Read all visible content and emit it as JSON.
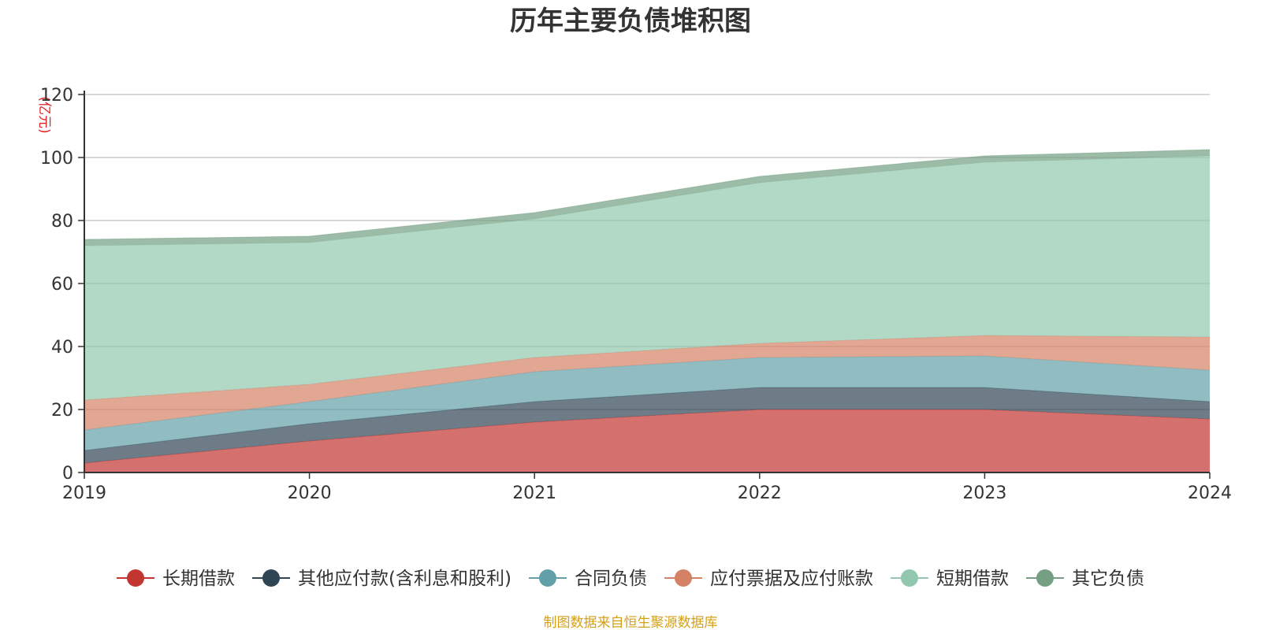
{
  "chart_data": {
    "type": "area",
    "stacked": true,
    "title": "历年主要负债堆积图",
    "unit_label": "(亿元)",
    "x": [
      "2019",
      "2020",
      "2021",
      "2022",
      "2023",
      "2024"
    ],
    "ylim": [
      0,
      120
    ],
    "yticks": [
      0,
      20,
      40,
      60,
      80,
      100,
      120
    ],
    "grid": true,
    "legend_position": "bottom",
    "series": [
      {
        "name": "长期借款",
        "color": "#c23531",
        "values": [
          3,
          10,
          16,
          20,
          20,
          17
        ]
      },
      {
        "name": "其他应付款(含利息和股利)",
        "color": "#2f4554",
        "values": [
          4,
          5.5,
          6.5,
          7,
          7,
          5.5
        ]
      },
      {
        "name": "合同负债",
        "color": "#61a0a8",
        "values": [
          6.5,
          7,
          9.5,
          9.5,
          10,
          10
        ]
      },
      {
        "name": "应付票据及应付账款",
        "color": "#d48265",
        "values": [
          9.5,
          5.5,
          4.5,
          4.5,
          6.5,
          10.5
        ]
      },
      {
        "name": "短期借款",
        "color": "#91c7ae",
        "values": [
          49,
          45,
          44,
          51,
          55,
          57.5
        ]
      },
      {
        "name": "其它负债",
        "color": "#749f83",
        "values": [
          2,
          2,
          2,
          2,
          2,
          2
        ]
      }
    ]
  },
  "source_text": "制图数据来自恒生聚源数据库"
}
